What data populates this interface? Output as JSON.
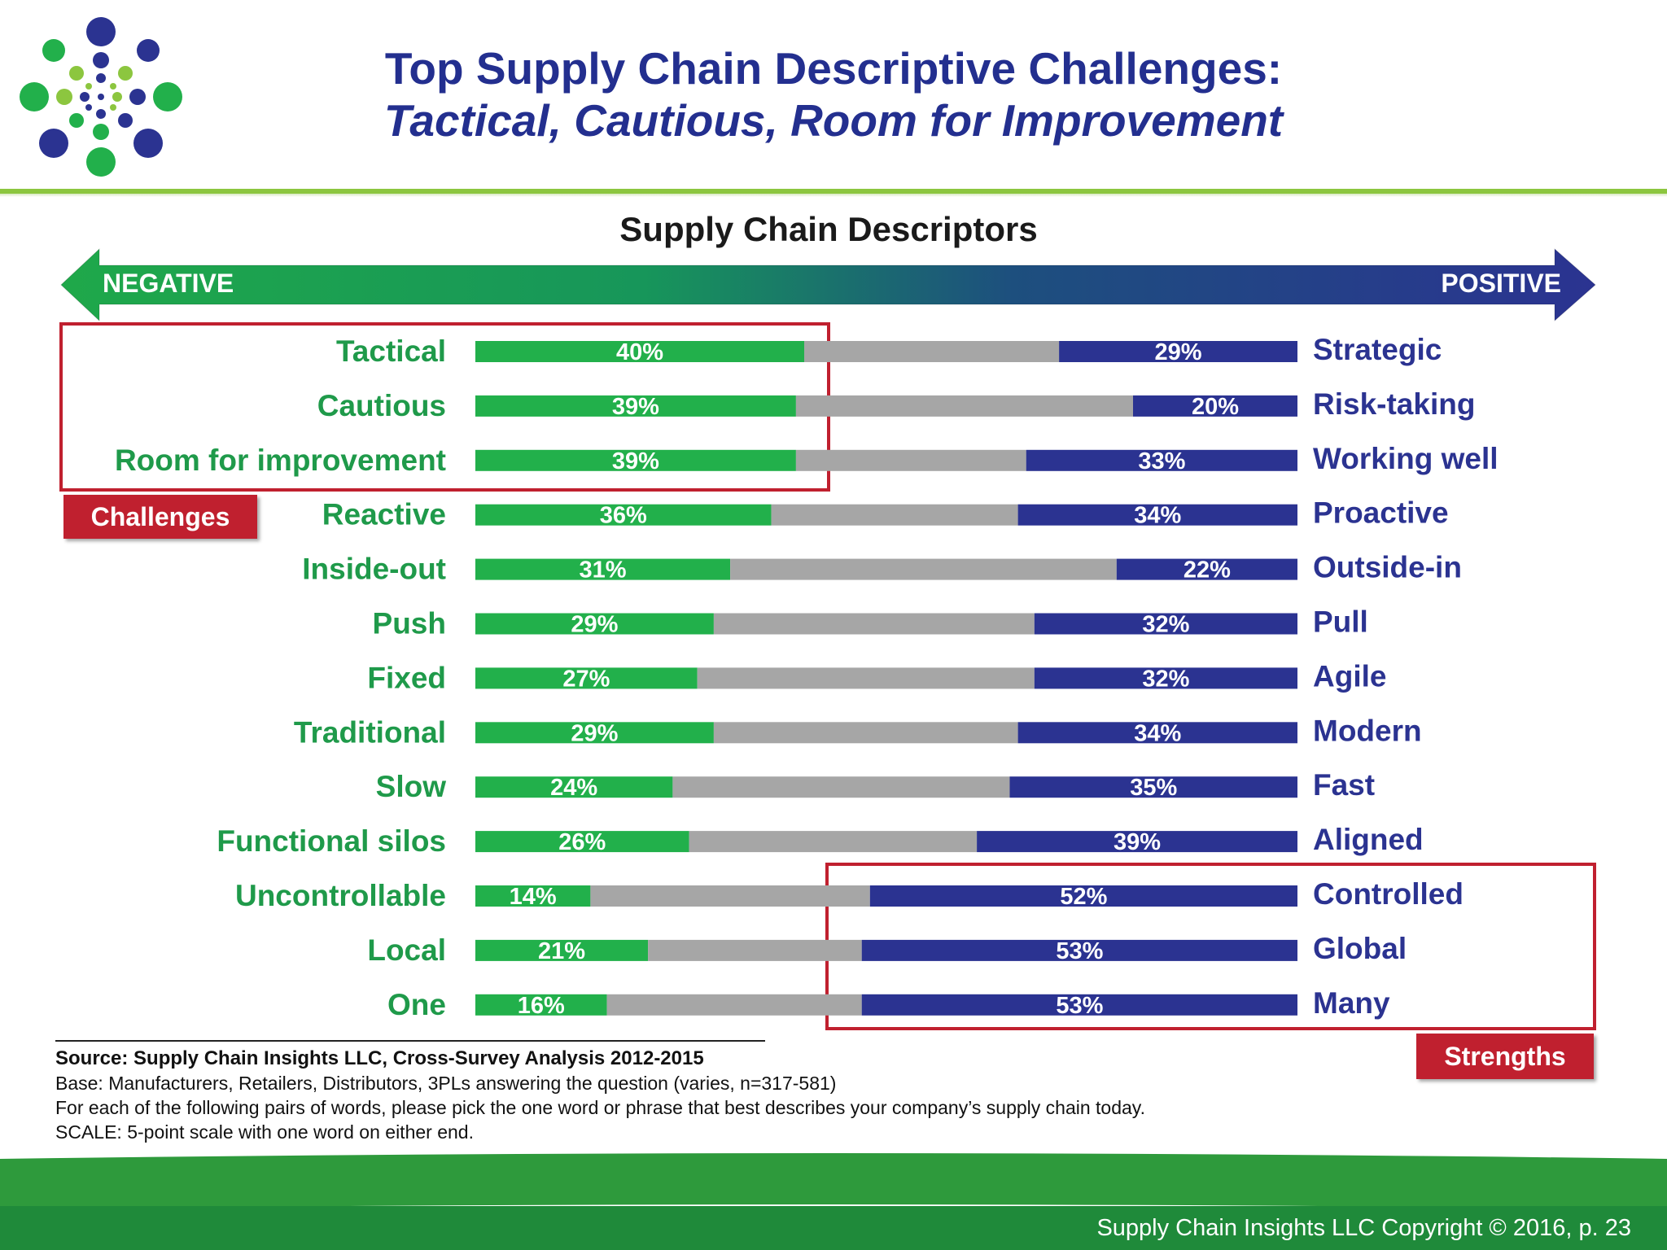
{
  "header": {
    "title_line1": "Top Supply Chain Descriptive Challenges:",
    "title_line2": "Tactical, Cautious, Room for Improvement",
    "logo_icon": "dot-burst-logo-icon"
  },
  "scale_arrow": {
    "left_label": "NEGATIVE",
    "right_label": "POSITIVE"
  },
  "callouts": {
    "challenges": "Challenges",
    "strengths": "Strengths"
  },
  "colors": {
    "negative": "#22b04b",
    "neutral": "#a6a6a6",
    "positive": "#2b3391",
    "negative_text": "#1f9a4a",
    "positive_text": "#2b3391",
    "callout": "#c0202f",
    "title": "#232f8f"
  },
  "chart_data": {
    "type": "bar",
    "subtype": "diverging-stacked-100",
    "title": "Supply Chain Descriptors",
    "negative_labels": [
      "Tactical",
      "Cautious",
      "Room for improvement",
      "Reactive",
      "Inside-out",
      "Push",
      "Fixed",
      "Traditional",
      "Slow",
      "Functional silos",
      "Uncontrollable",
      "Local",
      "One"
    ],
    "positive_labels": [
      "Strategic",
      "Risk-taking",
      "Working well",
      "Proactive",
      "Outside-in",
      "Pull",
      "Agile",
      "Modern",
      "Fast",
      "Aligned",
      "Controlled",
      "Global",
      "Many"
    ],
    "series": [
      {
        "values": [
          40,
          39,
          39,
          36,
          31,
          29,
          27,
          29,
          24,
          26,
          14,
          21,
          16
        ]
      },
      {
        "values": [
          31,
          41,
          28,
          30,
          47,
          39,
          41,
          37,
          41,
          35,
          34,
          26,
          31
        ]
      },
      {
        "values": [
          29,
          20,
          33,
          34,
          22,
          32,
          32,
          34,
          35,
          39,
          52,
          53,
          53
        ]
      }
    ],
    "value_labels_negative": [
      "40%",
      "39%",
      "39%",
      "36%",
      "31%",
      "29%",
      "27%",
      "29%",
      "24%",
      "26%",
      "14%",
      "21%",
      "16%"
    ],
    "value_labels_positive": [
      "29%",
      "20%",
      "33%",
      "34%",
      "22%",
      "32%",
      "32%",
      "34%",
      "35%",
      "39%",
      "52%",
      "53%",
      "53%"
    ],
    "xlim": [
      0,
      100
    ]
  },
  "footnotes": {
    "source": "Source:  Supply Chain Insights LLC, Cross-Survey Analysis 2012-2015",
    "base": "Base:  Manufacturers,  Retailers, Distributors, 3PLs answering the question (varies,  n=317-581)",
    "question": "For each of the following pairs of words, please pick the one word or phrase that best describes your company’s supply chain today.",
    "scale": "SCALE: 5-point scale with  one word on either end."
  },
  "footer": {
    "copyright": "Supply Chain Insights LLC Copyright © 2016, p. 23"
  }
}
